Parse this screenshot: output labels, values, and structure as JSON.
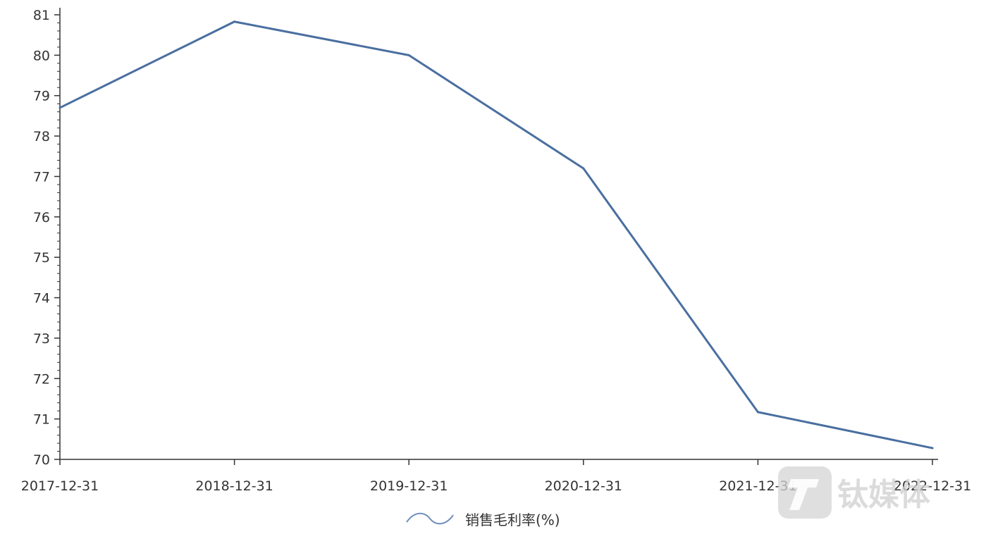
{
  "chart_data": {
    "type": "line",
    "title": "",
    "xlabel": "",
    "ylabel": "",
    "categories": [
      "2017-12-31",
      "2018-12-31",
      "2019-12-31",
      "2020-12-31",
      "2021-12-31",
      "2022-12-31"
    ],
    "series": [
      {
        "name": "销售毛利率(%)",
        "values": [
          78.7,
          80.83,
          80.0,
          77.2,
          71.17,
          70.28
        ],
        "color": "#4a6fa0"
      }
    ],
    "ylim": [
      70,
      81
    ],
    "yticks": [
      70,
      71,
      72,
      73,
      74,
      75,
      76,
      77,
      78,
      79,
      80,
      81
    ],
    "grid": false,
    "legend_position": "bottom-center"
  },
  "watermark": {
    "text": "钛媒体",
    "icon": "tmtpost-logo-icon"
  }
}
